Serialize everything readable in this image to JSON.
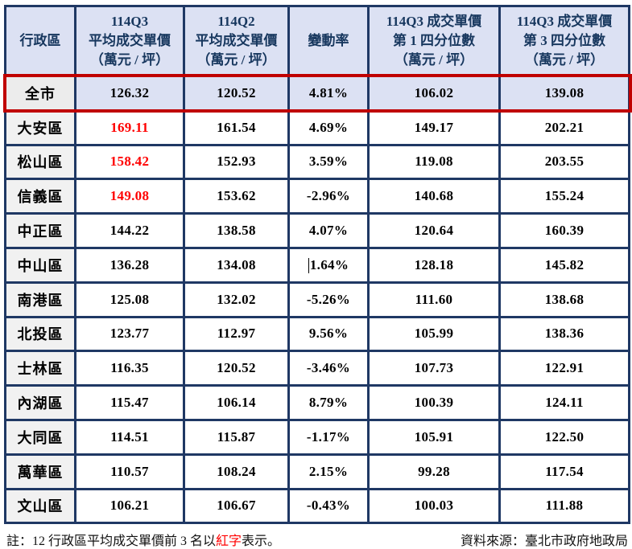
{
  "colors": {
    "border_navy": "#1F3864",
    "header_bg": "#DCE1F3",
    "header_text": "#17375E",
    "highlight_frame_red": "#C00000",
    "top3_red_text": "#FF0000",
    "district_cell_bg": "#F1F1F1"
  },
  "table": {
    "columns": [
      {
        "label": "行政區"
      },
      {
        "label": "114Q3\n平均成交單價\n（萬元 / 坪）"
      },
      {
        "label": "114Q2\n平均成交單價\n（萬元 / 坪）"
      },
      {
        "label": "變動率"
      },
      {
        "label": "114Q3 成交單價\n第 1 四分位數\n（萬元 / 坪）"
      },
      {
        "label": "114Q3 成交單價\n第 3 四分位數\n（萬元 / 坪）"
      }
    ],
    "rows": [
      {
        "district": "全市",
        "q3_avg": "126.32",
        "q2_avg": "120.52",
        "change": "4.81%",
        "q1_quartile": "106.02",
        "q3_quartile": "139.08",
        "highlight": true,
        "red_avg": false,
        "cursor": false
      },
      {
        "district": "大安區",
        "q3_avg": "169.11",
        "q2_avg": "161.54",
        "change": "4.69%",
        "q1_quartile": "149.17",
        "q3_quartile": "202.21",
        "highlight": false,
        "red_avg": true,
        "cursor": false
      },
      {
        "district": "松山區",
        "q3_avg": "158.42",
        "q2_avg": "152.93",
        "change": "3.59%",
        "q1_quartile": "119.08",
        "q3_quartile": "203.55",
        "highlight": false,
        "red_avg": true,
        "cursor": false
      },
      {
        "district": "信義區",
        "q3_avg": "149.08",
        "q2_avg": "153.62",
        "change": "-2.96%",
        "q1_quartile": "140.68",
        "q3_quartile": "155.24",
        "highlight": false,
        "red_avg": true,
        "cursor": false
      },
      {
        "district": "中正區",
        "q3_avg": "144.22",
        "q2_avg": "138.58",
        "change": "4.07%",
        "q1_quartile": "120.64",
        "q3_quartile": "160.39",
        "highlight": false,
        "red_avg": false,
        "cursor": false
      },
      {
        "district": "中山區",
        "q3_avg": "136.28",
        "q2_avg": "134.08",
        "change": "1.64%",
        "q1_quartile": "128.18",
        "q3_quartile": "145.82",
        "highlight": false,
        "red_avg": false,
        "cursor": true
      },
      {
        "district": "南港區",
        "q3_avg": "125.08",
        "q2_avg": "132.02",
        "change": "-5.26%",
        "q1_quartile": "111.60",
        "q3_quartile": "138.68",
        "highlight": false,
        "red_avg": false,
        "cursor": false
      },
      {
        "district": "北投區",
        "q3_avg": "123.77",
        "q2_avg": "112.97",
        "change": "9.56%",
        "q1_quartile": "105.99",
        "q3_quartile": "138.36",
        "highlight": false,
        "red_avg": false,
        "cursor": false
      },
      {
        "district": "士林區",
        "q3_avg": "116.35",
        "q2_avg": "120.52",
        "change": "-3.46%",
        "q1_quartile": "107.73",
        "q3_quartile": "122.91",
        "highlight": false,
        "red_avg": false,
        "cursor": false
      },
      {
        "district": "內湖區",
        "q3_avg": "115.47",
        "q2_avg": "106.14",
        "change": "8.79%",
        "q1_quartile": "100.39",
        "q3_quartile": "124.11",
        "highlight": false,
        "red_avg": false,
        "cursor": false
      },
      {
        "district": "大同區",
        "q3_avg": "114.51",
        "q2_avg": "115.87",
        "change": "-1.17%",
        "q1_quartile": "105.91",
        "q3_quartile": "122.50",
        "highlight": false,
        "red_avg": false,
        "cursor": false
      },
      {
        "district": "萬華區",
        "q3_avg": "110.57",
        "q2_avg": "108.24",
        "change": "2.15%",
        "q1_quartile": "99.28",
        "q3_quartile": "117.54",
        "highlight": false,
        "red_avg": false,
        "cursor": false
      },
      {
        "district": "文山區",
        "q3_avg": "106.21",
        "q2_avg": "106.67",
        "change": "-0.43%",
        "q1_quartile": "100.03",
        "q3_quartile": "111.88",
        "highlight": false,
        "red_avg": false,
        "cursor": false
      }
    ]
  },
  "footer": {
    "note_prefix": "註：12 行政區平均成交單價前 3 名以",
    "note_red": "紅字",
    "note_suffix": "表示。",
    "source": "資料來源：臺北市政府地政局"
  }
}
